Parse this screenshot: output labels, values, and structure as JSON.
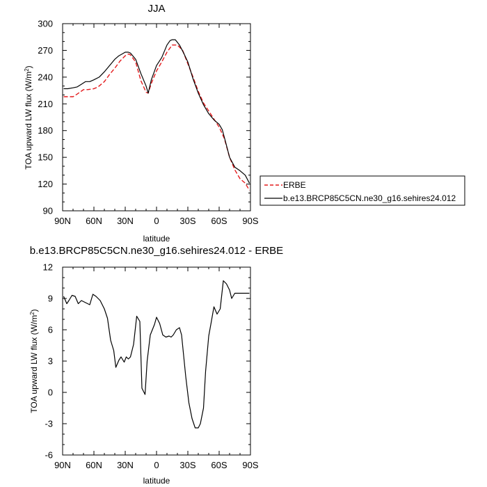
{
  "chart_data": [
    {
      "type": "line",
      "title": "JJA",
      "xlabel": "latitude",
      "ylabel": "TOA upward LW flux (W/m",
      "ylabel_sup": "2",
      "ylabel_close": ")",
      "xlim": [
        90,
        -90
      ],
      "ylim": [
        90,
        300
      ],
      "xticks": [
        90,
        60,
        30,
        0,
        -30,
        -60,
        -90
      ],
      "xtick_labels": [
        "90N",
        "60N",
        "30N",
        "0",
        "30S",
        "60S",
        "90S"
      ],
      "yticks": [
        90,
        120,
        150,
        180,
        210,
        240,
        270,
        300
      ],
      "ytick_labels": [
        "90",
        "120",
        "150",
        "180",
        "210",
        "240",
        "270",
        "300"
      ],
      "legend_position": "right",
      "series": [
        {
          "name": "ERBE",
          "color": "#e41a1c",
          "dash": "dashed",
          "x": [
            89,
            85,
            80,
            76,
            70,
            66,
            60,
            56,
            50,
            45,
            40,
            35,
            30,
            27,
            25,
            20,
            15,
            10,
            8,
            5,
            0,
            -5,
            -10,
            -15,
            -20,
            -25,
            -30,
            -35,
            -40,
            -45,
            -50,
            -55,
            -60,
            -65,
            -70,
            -75,
            -80,
            -85,
            -89
          ],
          "values": [
            218,
            218,
            218,
            221,
            226,
            226,
            227,
            229,
            235,
            243,
            250,
            258,
            264,
            266,
            265,
            257,
            236,
            223,
            222,
            233,
            247,
            257,
            268,
            276,
            276,
            270,
            255,
            240,
            224,
            211,
            202,
            193,
            184,
            171,
            150,
            136,
            126,
            121,
            113
          ]
        },
        {
          "name": "b.e13.BRCP85C5CN.ne30_g16.sehires24.012",
          "color": "#000000",
          "dash": "solid",
          "x": [
            89,
            85,
            80,
            76,
            72,
            68,
            64,
            60,
            55,
            50,
            45,
            40,
            36,
            33,
            30,
            27,
            25,
            20,
            15,
            10,
            8,
            5,
            0,
            -5,
            -10,
            -13,
            -15,
            -18,
            -22,
            -26,
            -30,
            -35,
            -40,
            -45,
            -50,
            -55,
            -60,
            -63,
            -66,
            -70,
            -75,
            -80,
            -85,
            -89
          ],
          "values": [
            227,
            227,
            228,
            229,
            232,
            235,
            235,
            237,
            240,
            246,
            253,
            260,
            264,
            266,
            268,
            268,
            267,
            260,
            244,
            230,
            222,
            237,
            253,
            262,
            276,
            281,
            282,
            282,
            276,
            267,
            257,
            238,
            222,
            209,
            199,
            192,
            187,
            181,
            168,
            150,
            139,
            135,
            130,
            121
          ]
        }
      ]
    },
    {
      "type": "line",
      "title": "b.e13.BRCP85C5CN.ne30_g16.sehires24.012 - ERBE",
      "xlabel": "latitude",
      "ylabel": "TOA upward LW flux (W/m",
      "ylabel_sup": "2",
      "ylabel_close": ")",
      "xlim": [
        90,
        -90
      ],
      "ylim": [
        -6,
        12
      ],
      "xticks": [
        90,
        60,
        30,
        0,
        -30,
        -60,
        -90
      ],
      "xtick_labels": [
        "90N",
        "60N",
        "30N",
        "0",
        "30S",
        "60S",
        "90S"
      ],
      "yticks": [
        -6,
        -3,
        0,
        3,
        6,
        9,
        12
      ],
      "ytick_labels": [
        "-6",
        "-3",
        "0",
        "3",
        "6",
        "9",
        "12"
      ],
      "series": [
        {
          "color": "#000000",
          "dash": "solid",
          "x": [
            89,
            86,
            84,
            81,
            78,
            75,
            72,
            68,
            64,
            61,
            58,
            54,
            50,
            47,
            44,
            41,
            39,
            36,
            34,
            31,
            29,
            27,
            25,
            22,
            19,
            16,
            14,
            11,
            9,
            6,
            4,
            2,
            0,
            -3,
            -6,
            -9,
            -12,
            -14,
            -16,
            -19,
            -22,
            -24,
            -26,
            -28,
            -31,
            -34,
            -37,
            -40,
            -42,
            -45,
            -47,
            -50,
            -52,
            -55,
            -58,
            -61,
            -64,
            -67,
            -70,
            -72,
            -75,
            -78,
            -81,
            -84,
            -87,
            -89
          ],
          "values": [
            9.2,
            8.5,
            8.8,
            9.3,
            9.2,
            8.5,
            8.8,
            8.6,
            8.4,
            9.4,
            9.2,
            8.8,
            8.0,
            7.1,
            5.0,
            4.0,
            2.4,
            3.1,
            3.4,
            2.9,
            3.4,
            3.2,
            3.4,
            4.6,
            7.3,
            6.8,
            0.4,
            -0.2,
            3.0,
            5.5,
            6.0,
            6.5,
            7.2,
            6.6,
            5.5,
            5.3,
            5.4,
            5.3,
            5.5,
            6.0,
            6.2,
            5.5,
            3.5,
            1.5,
            -1.0,
            -2.5,
            -3.4,
            -3.4,
            -3.0,
            -1.5,
            2.0,
            5.4,
            6.5,
            8.2,
            7.5,
            8.0,
            10.7,
            10.4,
            9.8,
            9.0,
            9.5,
            9.5,
            9.5,
            9.5,
            9.5,
            9.5
          ]
        }
      ]
    }
  ]
}
